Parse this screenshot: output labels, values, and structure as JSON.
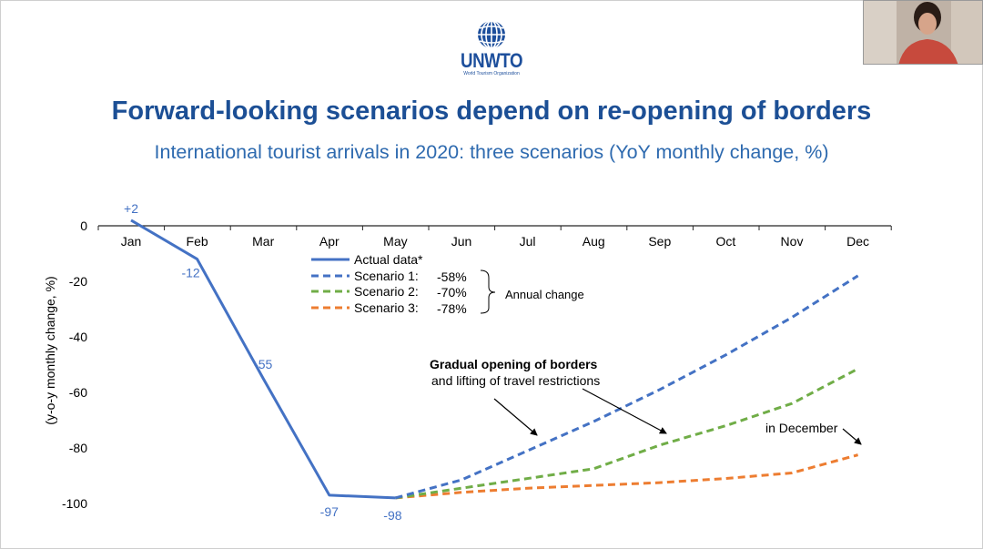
{
  "logo": {
    "name": "UNWTO",
    "subtitle": "World Tourism Organization"
  },
  "header": {
    "title": "Forward-looking scenarios depend on re-opening of borders",
    "subtitle": "International tourist arrivals in 2020: three scenarios (YoY monthly change, %)"
  },
  "colors": {
    "actual": "#4472c4",
    "scenario1": "#4472c4",
    "scenario2": "#70ad47",
    "scenario3": "#ed7d31",
    "title": "#1c4f95",
    "subtitle": "#2e6aaf"
  },
  "chart_data": {
    "type": "line",
    "categories": [
      "Jan",
      "Feb",
      "Mar",
      "Apr",
      "May",
      "Jun",
      "Jul",
      "Aug",
      "Sep",
      "Oct",
      "Nov",
      "Dec"
    ],
    "ylabel": "(y-o-y monthly change, %)",
    "ylim": [
      -100,
      0
    ],
    "yticks": [
      0,
      -20,
      -40,
      -60,
      -80,
      -100
    ],
    "series": [
      {
        "name": "Actual data*",
        "key": "actual",
        "style": "solid",
        "values": [
          2,
          -12,
          -55,
          -97,
          -98,
          null,
          null,
          null,
          null,
          null,
          null,
          null
        ],
        "labels": [
          "+2",
          "-12",
          "-55",
          "-97",
          "-98"
        ]
      },
      {
        "name": "Scenario 1:",
        "key": "scenario1",
        "style": "dashed",
        "annual": "-58%",
        "values": [
          null,
          null,
          null,
          null,
          -98,
          -91.5,
          -81,
          -70.5,
          -59,
          -46.5,
          -33,
          -18
        ]
      },
      {
        "name": "Scenario 2:",
        "key": "scenario2",
        "style": "dashed",
        "annual": "-70%",
        "values": [
          null,
          null,
          null,
          null,
          -98,
          -94.5,
          -91,
          -87.5,
          -79,
          -72,
          -64,
          -51.5
        ]
      },
      {
        "name": "Scenario 3:",
        "key": "scenario3",
        "style": "dashed",
        "annual": "-78%",
        "values": [
          null,
          null,
          null,
          null,
          -98,
          -96,
          -94.5,
          -93.5,
          -92.5,
          -91,
          -89,
          -82.5
        ]
      }
    ],
    "annual_change_label": "Annual change",
    "annotations": {
      "bold": "Gradual opening of borders",
      "normal": "and lifting of travel restrictions",
      "december": "in December"
    }
  }
}
